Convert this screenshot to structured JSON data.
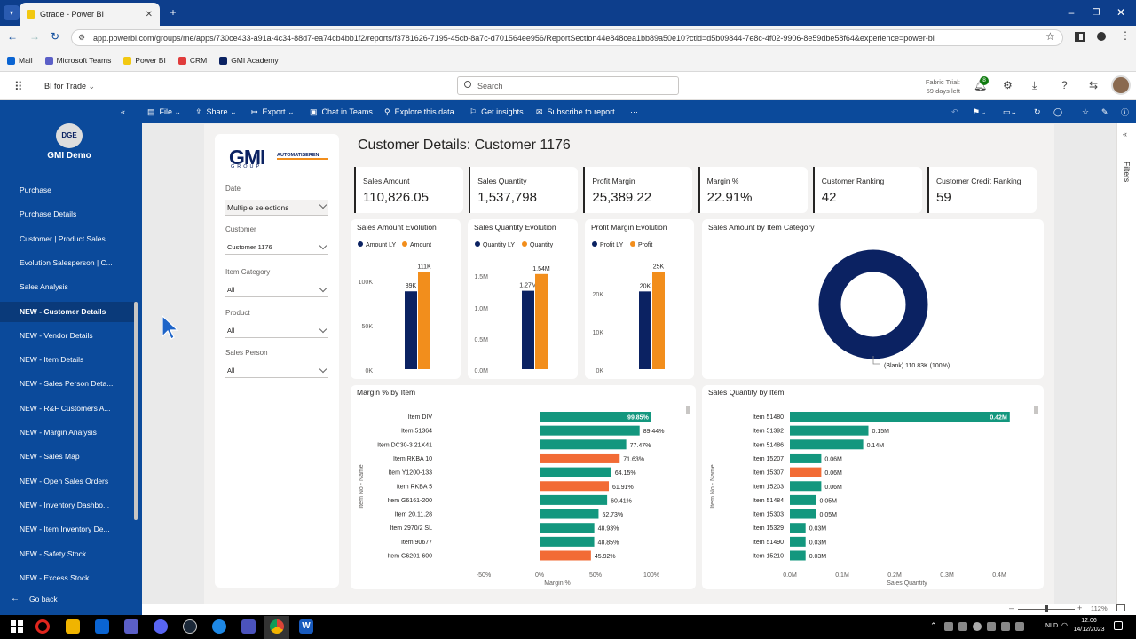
{
  "browser": {
    "tab_title": "Gtrade - Power BI",
    "url": "app.powerbi.com/groups/me/apps/730ce433-a91a-4c34-88d7-ea74cb4bb1f2/reports/f3781626-7195-45cb-8a7c-d701564ee956/ReportSection44e848cea1bb89a50e10?ctid=d5b09844-7e8c-4f02-9906-8e59dbe58f64&experience=power-bi",
    "bookmarks": [
      "Mail",
      "Microsoft Teams",
      "Power BI",
      "CRM",
      "GMI Academy"
    ]
  },
  "pbi_header": {
    "app_name": "BI for Trade",
    "search_placeholder": "Search",
    "trial_line1": "Fabric Trial:",
    "trial_line2": "59 days left",
    "notif_count": "8"
  },
  "toolbar": {
    "file": "File",
    "share": "Share",
    "export": "Export",
    "chat": "Chat in Teams",
    "explore": "Explore this data",
    "insights": "Get insights",
    "subscribe": "Subscribe to report",
    "more": "···"
  },
  "nav": {
    "logo_text": "DGE",
    "app_title": "GMI Demo",
    "items": [
      "Purchase",
      "Purchase Details",
      "Customer | Product Sales...",
      "Evolution Salesperson | C...",
      "Sales Analysis",
      "NEW - Customer Details",
      "NEW - Vendor Details",
      "NEW - Item Details",
      "NEW - Sales Person Deta...",
      "NEW - R&F Customers A...",
      "NEW - Margin Analysis",
      "NEW - Sales Map",
      "NEW - Open Sales Orders",
      "NEW - Inventory Dashbo...",
      "NEW - Item Inventory De...",
      "NEW - Safety Stock",
      "NEW - Excess Stock"
    ],
    "go_back": "Go back"
  },
  "report": {
    "logo_main": "GMI",
    "logo_sub": "AUTOMATISEREN",
    "logo_tag": "GROUP",
    "title": "Customer Details: Customer 1176",
    "slicers": [
      {
        "label": "Date",
        "value": "Multiple selections"
      },
      {
        "label": "Customer",
        "value": "Customer 1176"
      },
      {
        "label": "Item Category",
        "value": "All"
      },
      {
        "label": "Product",
        "value": "All"
      },
      {
        "label": "Sales Person",
        "value": "All"
      }
    ],
    "kpis": [
      {
        "label": "Sales Amount",
        "value": "110,826.05"
      },
      {
        "label": "Sales Quantity",
        "value": "1,537,798"
      },
      {
        "label": "Profit Margin",
        "value": "25,389.22"
      },
      {
        "label": "Margin %",
        "value": "22.91%"
      },
      {
        "label": "Customer Ranking",
        "value": "42"
      },
      {
        "label": "Customer Credit Ranking",
        "value": "59"
      }
    ],
    "filters_label": "Filters"
  },
  "colors": {
    "navy": "#0b2262",
    "orange": "#f28e1c",
    "teal": "#13977e",
    "red_orange": "#f26b35",
    "nav_bg": "#0b4a9b"
  },
  "chart_data": [
    {
      "type": "bar",
      "title": "Sales Amount Evolution",
      "categories": [
        ""
      ],
      "series": [
        {
          "name": "Amount LY",
          "values": [
            89000
          ]
        },
        {
          "name": "Amount",
          "values": [
            111000
          ]
        }
      ],
      "data_labels": [
        "89K",
        "111K"
      ],
      "yticks": [
        "0K",
        "50K",
        "100K"
      ],
      "ylim": [
        0,
        120000
      ]
    },
    {
      "type": "bar",
      "title": "Sales Quantity Evolution",
      "categories": [
        ""
      ],
      "series": [
        {
          "name": "Quantity LY",
          "values": [
            1270000
          ]
        },
        {
          "name": "Quantity",
          "values": [
            1540000
          ]
        }
      ],
      "data_labels": [
        "1.27M",
        "1.54M"
      ],
      "yticks": [
        "0.0M",
        "0.5M",
        "1.0M",
        "1.5M"
      ],
      "ylim": [
        0,
        1700000
      ]
    },
    {
      "type": "bar",
      "title": "Profit Margin Evolution",
      "categories": [
        ""
      ],
      "series": [
        {
          "name": "Profit LY",
          "values": [
            20000
          ]
        },
        {
          "name": "Profit",
          "values": [
            25000
          ]
        }
      ],
      "data_labels": [
        "20K",
        "25K"
      ],
      "yticks": [
        "0K",
        "10K",
        "20K"
      ],
      "ylim": [
        0,
        27000
      ]
    },
    {
      "type": "pie",
      "title": "Sales Amount by Item Category",
      "slices": [
        {
          "label": "(Blank) 110.83K (100%)",
          "value": 110830
        }
      ]
    },
    {
      "type": "bar",
      "orientation": "horizontal",
      "title": "Margin % by Item",
      "ylabel": "Item No - Name",
      "xlabel": "Margin %",
      "xticks": [
        "-50%",
        "0%",
        "50%",
        "100%"
      ],
      "xlim": [
        -50,
        100
      ],
      "categories": [
        "Item DIV",
        "Item 51364",
        "Item DC30-3 21X41",
        "Item RKBA 10",
        "Item Y1200-133",
        "Item RKBA 5",
        "Item G6161-200",
        "Item 20.11.28",
        "Item 2970/2 SL",
        "Item 90677",
        "Item G6201-600"
      ],
      "values": [
        99.85,
        89.44,
        77.47,
        71.63,
        64.15,
        61.91,
        60.41,
        52.73,
        48.93,
        48.85,
        45.92
      ],
      "labels": [
        "99.85%",
        "89.44%",
        "77.47%",
        "71.63%",
        "64.15%",
        "61.91%",
        "60.41%",
        "52.73%",
        "48.93%",
        "48.85%",
        "45.92%"
      ],
      "highlight": [
        false,
        false,
        false,
        true,
        false,
        true,
        false,
        false,
        false,
        false,
        true
      ]
    },
    {
      "type": "bar",
      "orientation": "horizontal",
      "title": "Sales Quantity by Item",
      "ylabel": "Item No - Name",
      "xlabel": "Sales Quantity",
      "xticks": [
        "0.0M",
        "0.1M",
        "0.2M",
        "0.3M",
        "0.4M"
      ],
      "xlim": [
        0,
        0.4
      ],
      "categories": [
        "Item 51480",
        "Item 51392",
        "Item 51486",
        "Item 15207",
        "Item 15307",
        "Item 15203",
        "Item 51484",
        "Item 15303",
        "Item 15329",
        "Item 51490",
        "Item 15210"
      ],
      "values": [
        0.42,
        0.15,
        0.14,
        0.06,
        0.06,
        0.06,
        0.05,
        0.05,
        0.03,
        0.03,
        0.03
      ],
      "labels": [
        "0.42M",
        "0.15M",
        "0.14M",
        "0.06M",
        "0.06M",
        "0.06M",
        "0.05M",
        "0.05M",
        "0.03M",
        "0.03M",
        "0.03M"
      ],
      "highlight": [
        false,
        false,
        false,
        false,
        true,
        false,
        false,
        false,
        false,
        false,
        false
      ]
    }
  ],
  "statusbar": {
    "zoom": "112%"
  },
  "taskbar": {
    "lang": "NLD",
    "time": "12:06",
    "date": "14/12/2023"
  }
}
